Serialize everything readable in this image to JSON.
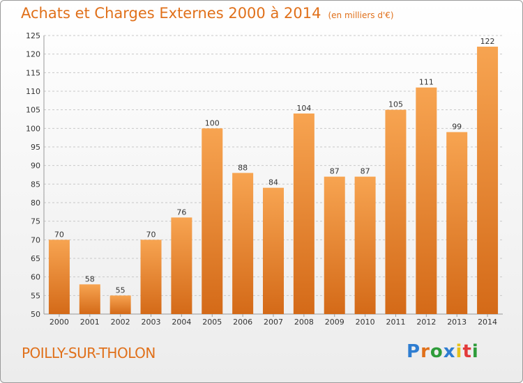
{
  "header": {
    "title": "Achats et Charges Externes 2000 à 2014",
    "unit": "(en milliers d'€)"
  },
  "footer": {
    "location": "POILLY-SUR-THOLON",
    "logo_text": "Proxiti",
    "logo_colors": [
      "#2e7dd1",
      "#e0701a",
      "#2e9c3a",
      "#2e7dd1",
      "#e6c21a",
      "#e23a3a",
      "#2e9c3a"
    ]
  },
  "colors": {
    "accent": "#e0701a",
    "bar_light": "#f7a451",
    "bar_dark": "#d46a18",
    "grid": "#c8c8c8",
    "axis_text": "#333333"
  },
  "chart_data": {
    "type": "bar",
    "title": "Achats et Charges Externes 2000 à 2014",
    "subtitle": "(en milliers d'€)",
    "xlabel": "",
    "ylabel": "",
    "categories": [
      "2000",
      "2001",
      "2002",
      "2003",
      "2004",
      "2005",
      "2006",
      "2007",
      "2008",
      "2009",
      "2010",
      "2011",
      "2012",
      "2013",
      "2014"
    ],
    "values": [
      70,
      58,
      55,
      70,
      76,
      100,
      88,
      84,
      104,
      87,
      87,
      105,
      111,
      99,
      122
    ],
    "ylim": [
      50,
      125
    ],
    "yticks": [
      50,
      55,
      60,
      65,
      70,
      75,
      80,
      85,
      90,
      95,
      100,
      105,
      110,
      115,
      120,
      125
    ],
    "grid": "horizontal-dashed",
    "legend": "none",
    "data_labels": true
  }
}
